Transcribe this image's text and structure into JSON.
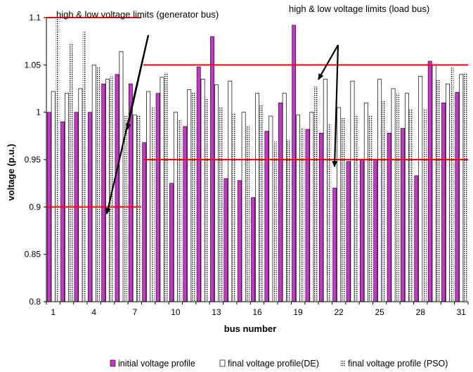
{
  "chart_data": {
    "type": "bar",
    "xlabel": "bus number",
    "ylabel": "voltage (p.u.)",
    "ylim": [
      0.8,
      1.1
    ],
    "y_ticks": [
      0.8,
      0.85,
      0.9,
      0.95,
      1,
      1.05,
      1.1
    ],
    "y_tick_labels": [
      "0.8",
      "0.85",
      "0.9",
      "0.95",
      "1",
      "1.05",
      "1.1"
    ],
    "x_tick_labels": [
      "1",
      "4",
      "7",
      "10",
      "13",
      "16",
      "19",
      "22",
      "25",
      "28",
      "31"
    ],
    "categories": [
      1,
      2,
      3,
      4,
      5,
      6,
      7,
      8,
      9,
      10,
      11,
      12,
      13,
      14,
      15,
      16,
      17,
      18,
      19,
      20,
      21,
      22,
      23,
      24,
      25,
      26,
      27,
      28,
      29,
      30,
      31
    ],
    "series": [
      {
        "name": "initial voltage profile",
        "color": "#cc33cc",
        "pattern": "solid",
        "values": [
          1.0,
          0.99,
          1.0,
          1.0,
          1.03,
          1.04,
          1.03,
          0.968,
          1.02,
          0.925,
          0.985,
          1.048,
          1.08,
          0.93,
          0.928,
          0.91,
          0.98,
          1.01,
          1.092,
          0.982,
          0.978,
          0.92,
          0.948,
          0.95,
          0.95,
          0.978,
          0.983,
          0.933,
          1.054,
          1.01,
          1.021
        ]
      },
      {
        "name": "final voltage profile(DE)",
        "color": "#ffffff",
        "pattern": "hollow",
        "values": [
          1.022,
          1.02,
          1.025,
          1.05,
          1.035,
          1.064,
          0.997,
          1.022,
          1.037,
          1.0,
          1.024,
          1.035,
          1.029,
          1.033,
          1.0,
          1.02,
          0.996,
          1.02,
          0.997,
          1.0,
          1.035,
          1.005,
          1.033,
          1.01,
          1.035,
          1.025,
          1.02,
          1.038,
          1.05,
          1.03,
          1.04
        ]
      },
      {
        "name": "final voltage profile (PSO)",
        "color": "#000000",
        "pattern": "dotted",
        "values": [
          1.1,
          1.073,
          1.085,
          1.048,
          1.038,
          0.997,
          0.997,
          1.005,
          1.042,
          0.992,
          1.021,
          1.014,
          1.005,
          0.999,
          0.985,
          1.008,
          0.969,
          0.971,
          0.984,
          1.027,
          0.988,
          0.995,
          0.997,
          0.996,
          1.013,
          1.02,
          1.003,
          1.003,
          1.035,
          1.048,
          1.042
        ]
      }
    ],
    "limit_lines": [
      {
        "value": 1.1,
        "span": "generator buses",
        "color": "#ff0000"
      },
      {
        "value": 0.9,
        "span": "generator buses",
        "color": "#ff0000"
      },
      {
        "value": 1.05,
        "span": "load buses",
        "color": "#ff0000"
      },
      {
        "value": 0.95,
        "span": "load buses",
        "color": "#ff0000"
      }
    ],
    "annotations": [
      "high & low voltage limits (generator bus)",
      "high & low voltage limits (load bus)"
    ],
    "grid": false,
    "legend_position": "bottom"
  }
}
